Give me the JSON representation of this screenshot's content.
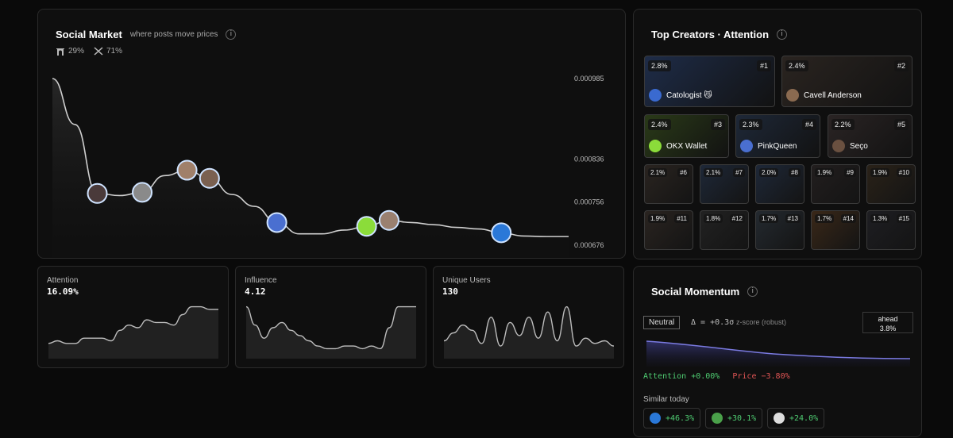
{
  "social_market": {
    "title": "Social Market",
    "subtitle": "where posts move prices",
    "info": "i",
    "sources": [
      {
        "icon": "farcaster-icon",
        "pct": "29%"
      },
      {
        "icon": "x-icon",
        "pct": "71%"
      }
    ]
  },
  "chart_data": {
    "type": "line",
    "title": "",
    "xlabel": "",
    "ylabel": "",
    "y_tick_labels": [
      "0.000985",
      "0.000836",
      "0.000756",
      "0.000676"
    ],
    "ylim": [
      0.000676,
      0.000985
    ],
    "y": [
      0.000985,
      0.0009,
      0.000772,
      0.000768,
      0.000774,
      0.000805,
      0.000815,
      0.0008,
      0.00077,
      0.000748,
      0.000718,
      0.000697,
      0.000697,
      0.000704,
      0.000711,
      0.000722,
      0.000718,
      0.000714,
      0.000709,
      0.000706,
      0.000699,
      0.000693,
      0.000692,
      0.000692
    ],
    "post_markers": [
      {
        "index": 2,
        "avatar": "creator-avatar",
        "color": "#4a3a3a"
      },
      {
        "index": 4,
        "avatar": "creator-avatar",
        "color": "#8a8a8a"
      },
      {
        "index": 6,
        "avatar": "creator-avatar",
        "color": "#a0806a"
      },
      {
        "index": 7,
        "avatar": "creator-avatar",
        "color": "#7a6050"
      },
      {
        "index": 10,
        "avatar": "pinkqueen-avatar",
        "color": "#4a6fd0"
      },
      {
        "index": 14,
        "avatar": "okx-avatar",
        "color": "#8bdc3a"
      },
      {
        "index": 15,
        "avatar": "creator-avatar",
        "color": "#9a8070"
      },
      {
        "index": 20,
        "avatar": "creator-avatar",
        "color": "#2a78d8"
      }
    ],
    "grid": false,
    "legend": "none"
  },
  "stats": [
    {
      "label": "Attention",
      "value": "16.09%",
      "spark": [
        4,
        5,
        4,
        4,
        6,
        6,
        6,
        5,
        9,
        11,
        10,
        13,
        12,
        12,
        11,
        15,
        18,
        18,
        17,
        17
      ]
    },
    {
      "label": "Influence",
      "value": "4.12",
      "spark": [
        18,
        11,
        6,
        10,
        12,
        9,
        7,
        5,
        3,
        2,
        2,
        3,
        3,
        2,
        3,
        2,
        10,
        18,
        18,
        18
      ]
    },
    {
      "label": "Unique Users",
      "value": "130",
      "spark": [
        5,
        8,
        11,
        9,
        4,
        14,
        3,
        12,
        7,
        14,
        6,
        16,
        5,
        18,
        3,
        6,
        4,
        5,
        3
      ]
    }
  ],
  "creators": {
    "title": "Top Creators · Attention",
    "info": "i",
    "top": [
      {
        "pct": "2.8%",
        "rank": "#1",
        "name": "Catologist 😼",
        "bg": "#1e2c48",
        "av": "#3a6ad0"
      },
      {
        "pct": "2.4%",
        "rank": "#2",
        "name": "Cavell Anderson",
        "bg": "#2a2420",
        "av": "#8a6a50"
      },
      {
        "pct": "2.4%",
        "rank": "#3",
        "name": "OKX Wallet",
        "bg": "#2a3a18",
        "av": "#8bdc3a"
      },
      {
        "pct": "2.3%",
        "rank": "#4",
        "name": "PinkQueen",
        "bg": "#1e2838",
        "av": "#4a6fd0"
      },
      {
        "pct": "2.2%",
        "rank": "#5",
        "name": "Seço",
        "bg": "#2a2424",
        "av": "#6a5040"
      }
    ],
    "small": [
      {
        "pct": "2.1%",
        "rank": "#6",
        "bg": "#2a2420"
      },
      {
        "pct": "2.1%",
        "rank": "#7",
        "bg": "#1e2838"
      },
      {
        "pct": "2.0%",
        "rank": "#8",
        "bg": "#1e2838"
      },
      {
        "pct": "1.9%",
        "rank": "#9",
        "bg": "#221e1e"
      },
      {
        "pct": "1.9%",
        "rank": "#10",
        "bg": "#2a2218"
      },
      {
        "pct": "1.9%",
        "rank": "#11",
        "bg": "#2a2420"
      },
      {
        "pct": "1.8%",
        "rank": "#12",
        "bg": "#222222"
      },
      {
        "pct": "1.7%",
        "rank": "#13",
        "bg": "#242a30"
      },
      {
        "pct": "1.7%",
        "rank": "#14",
        "bg": "#3a2818"
      },
      {
        "pct": "1.3%",
        "rank": "#15",
        "bg": "#1e1e22"
      }
    ]
  },
  "momentum": {
    "title": "Social Momentum",
    "info": "i",
    "state": "Neutral",
    "zscore": "Δ = +0.3σ",
    "zscore_note": "z-score (robust)",
    "ahead_label": "ahead",
    "ahead_value": "3.8%",
    "attention_delta": "Attention +0.00%",
    "price_delta": "Price −3.80%",
    "similar_label": "Similar today",
    "similar": [
      {
        "value": "+46.3%",
        "color": "#2a78d8"
      },
      {
        "value": "+30.1%",
        "color": "#4aa04a"
      },
      {
        "value": "+24.0%",
        "color": "#dddddd"
      }
    ]
  }
}
